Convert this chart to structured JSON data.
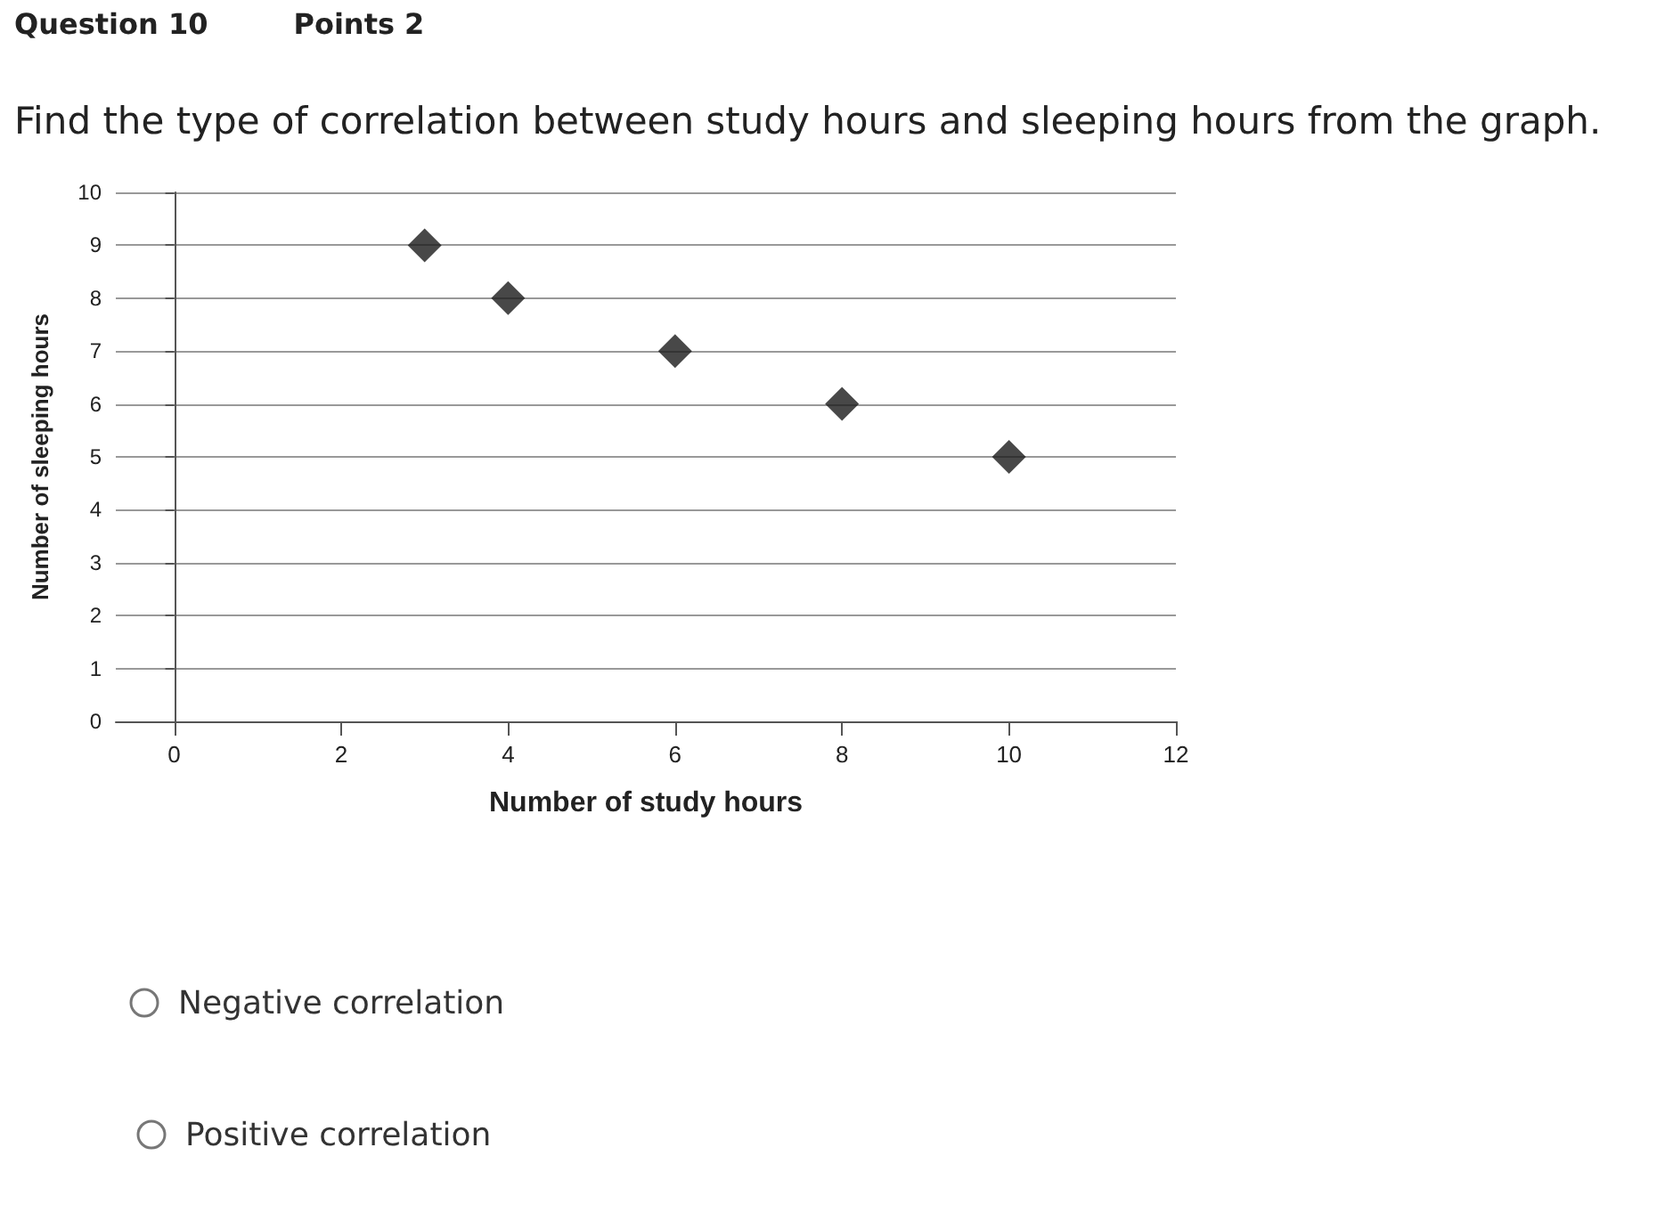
{
  "chart_data": {
    "type": "scatter",
    "title": "Find the type of correlation between study hours and sleeping hours from the graph.",
    "xlabel": "Number of study hours",
    "ylabel": "Number of sleeping hours",
    "annotations": [
      "Question 10",
      "Points 2",
      "Negative correlation",
      "Positive correlation"
    ],
    "x": [
      3,
      4,
      6,
      8,
      10
    ],
    "values": [
      9,
      8,
      7,
      6,
      5
    ],
    "color": "#1a1a1a",
    "marker": "diamond",
    "xlim": [
      -0.7,
      12
    ],
    "xticks": [
      0,
      2,
      4,
      6,
      8,
      10,
      12
    ],
    "ylim": [
      0,
      10
    ],
    "yticks": [
      0,
      1,
      2,
      3,
      4,
      5,
      6,
      7,
      8,
      9,
      10
    ],
    "grid": "y"
  }
}
